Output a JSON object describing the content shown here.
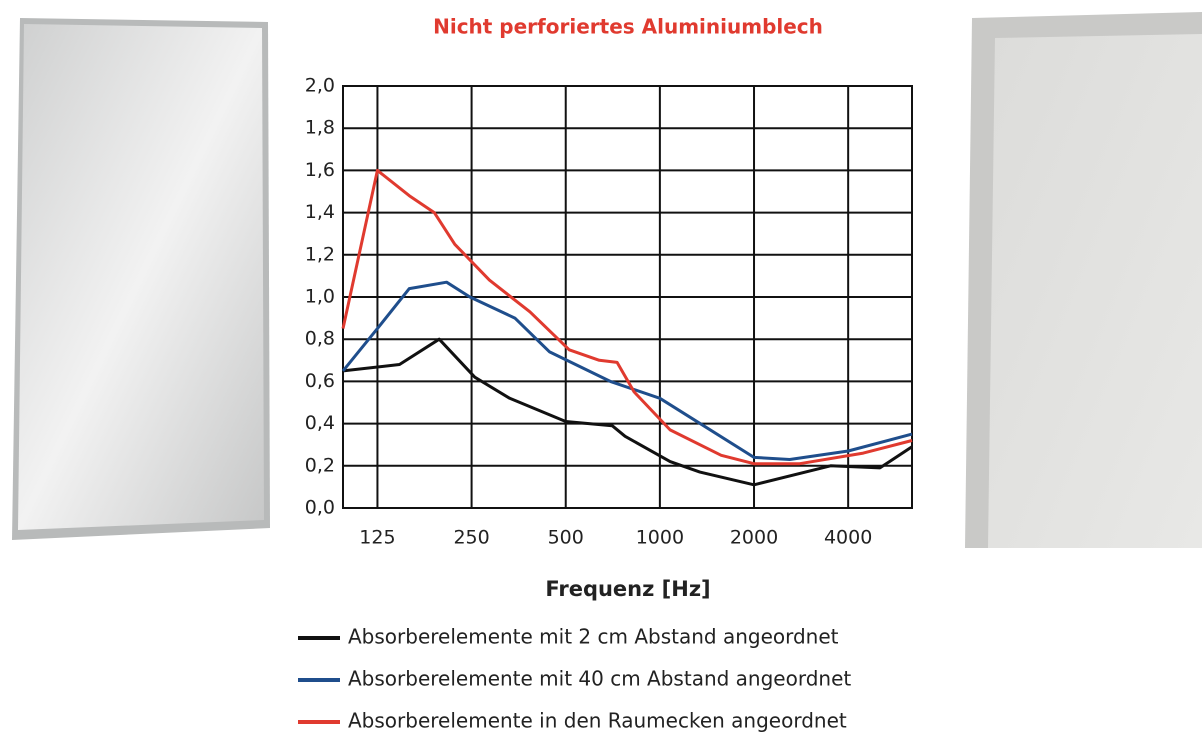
{
  "chart_data": {
    "type": "line",
    "title": "Nicht perforiertes Aluminiumblech",
    "x_label": "Frequenz [Hz]",
    "x_scale": "log",
    "xlim": [
      97,
      6400
    ],
    "xticks": [
      125,
      250,
      500,
      1000,
      2000,
      4000
    ],
    "ylim": [
      0,
      2
    ],
    "yticks": [
      {
        "value": 0,
        "label": "0,0"
      },
      {
        "value": 0.2,
        "label": "0,2"
      },
      {
        "value": 0.4,
        "label": "0,4"
      },
      {
        "value": 0.6,
        "label": "0,6"
      },
      {
        "value": 0.8,
        "label": "0,8"
      },
      {
        "value": 1,
        "label": "1,0"
      },
      {
        "value": 1.2,
        "label": "1,2"
      },
      {
        "value": 1.4,
        "label": "1,4"
      },
      {
        "value": 1.6,
        "label": "1,6"
      },
      {
        "value": 1.8,
        "label": "1,8"
      },
      {
        "value": 2,
        "label": "2,0"
      }
    ],
    "grid": true,
    "legend": "bottom",
    "series": [
      {
        "name": "Absorberelemente mit 2 cm Abstand angeordnet",
        "color": "#111111",
        "x": [
          97,
          147,
          197,
          256,
          331,
          500,
          704,
          774,
          1078,
          1343,
          2000,
          3514,
          5054,
          6400
        ],
        "values": [
          0.65,
          0.68,
          0.8,
          0.62,
          0.52,
          0.41,
          0.39,
          0.34,
          0.22,
          0.17,
          0.11,
          0.2,
          0.19,
          0.29
        ]
      },
      {
        "name": "Absorberelemente mit 40 cm Abstand angeordnet",
        "color": "#1f4e8c",
        "x": [
          97,
          125,
          158,
          208,
          247,
          344,
          444,
          694,
          1000,
          1250,
          2000,
          2600,
          4000,
          6400
        ],
        "values": [
          0.65,
          0.85,
          1.04,
          1.07,
          1.0,
          0.9,
          0.74,
          0.6,
          0.52,
          0.43,
          0.24,
          0.23,
          0.27,
          0.35
        ]
      },
      {
        "name": "Absorberelemente in den Raumecken angeordnet",
        "color": "#e03a2f",
        "x": [
          97,
          125,
          158,
          190,
          221,
          285,
          384,
          513,
          640,
          730,
          827,
          1078,
          1571,
          2000,
          2800,
          4473,
          6400
        ],
        "values": [
          0.85,
          1.6,
          1.48,
          1.4,
          1.25,
          1.08,
          0.93,
          0.75,
          0.7,
          0.69,
          0.55,
          0.37,
          0.25,
          0.21,
          0.21,
          0.26,
          0.32
        ]
      }
    ]
  }
}
